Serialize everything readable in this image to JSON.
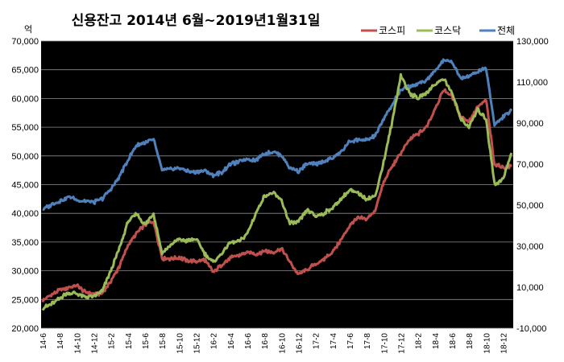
{
  "chart_data": {
    "type": "line",
    "title": "신용잔고 2014년 6월~2019년1월31일",
    "ylabel_left_unit": "억",
    "ylim_left": [
      20000,
      70000
    ],
    "ylim_right": [
      -10000,
      130000
    ],
    "yticks_left": [
      20000,
      25000,
      30000,
      35000,
      40000,
      45000,
      50000,
      55000,
      60000,
      65000,
      70000
    ],
    "yticks_right": [
      -10000,
      10000,
      30000,
      50000,
      70000,
      90000,
      110000,
      130000
    ],
    "yticks_left_labels": [
      "20,000",
      "25,000",
      "30,000",
      "35,000",
      "40,000",
      "45,000",
      "50,000",
      "55,000",
      "60,000",
      "65,000",
      "70,000"
    ],
    "yticks_right_labels": [
      "-10,000",
      "10,000",
      "30,000",
      "50,000",
      "70,000",
      "90,000",
      "110,000",
      "130,000"
    ],
    "x": [
      "14-6",
      "14-7",
      "14-8",
      "14-9",
      "14-10",
      "14-11",
      "14-12",
      "15-1",
      "15-2",
      "15-3",
      "15-4",
      "15-5",
      "15-6",
      "15-7",
      "15-8",
      "15-9",
      "15-10",
      "15-11",
      "15-12",
      "16-1",
      "16-2",
      "16-3",
      "16-4",
      "16-5",
      "16-6",
      "16-7",
      "16-8",
      "16-9",
      "16-10",
      "16-11",
      "16-12",
      "17-1",
      "17-2",
      "17-3",
      "17-4",
      "17-5",
      "17-6",
      "17-7",
      "17-8",
      "17-9",
      "17-10",
      "17-11",
      "17-12",
      "18-1",
      "18-2",
      "18-3",
      "18-4",
      "18-5",
      "18-6",
      "18-7",
      "18-8",
      "18-9",
      "18-10",
      "18-11",
      "18-12",
      "19-1"
    ],
    "x_tick_labels": [
      "14-6",
      "14-8",
      "14-10",
      "14-12",
      "15-2",
      "15-4",
      "15-6",
      "15-8",
      "15-10",
      "15-12",
      "16-2",
      "16-4",
      "16-6",
      "16-8",
      "16-10",
      "16-12",
      "17-2",
      "17-4",
      "17-6",
      "17-8",
      "17-10",
      "17-12",
      "18-2",
      "18-4",
      "18-6",
      "18-8",
      "18-10",
      "18-12"
    ],
    "legend_position": "top-right",
    "grid": true,
    "series": [
      {
        "name": "코스피",
        "color": "#c0504d",
        "axis": "left",
        "values": [
          24800,
          25800,
          26600,
          27100,
          27400,
          26300,
          25900,
          26100,
          28200,
          30800,
          34500,
          36500,
          38000,
          38600,
          32200,
          32100,
          32300,
          31800,
          31600,
          31900,
          29800,
          31000,
          32200,
          32700,
          33200,
          32900,
          33500,
          33200,
          33800,
          31500,
          29300,
          30200,
          31200,
          32000,
          33300,
          35400,
          37900,
          39200,
          39000,
          40500,
          45500,
          48200,
          50500,
          52800,
          53800,
          55000,
          58200,
          61500,
          60500,
          57000,
          56000,
          58500,
          59800,
          48500,
          48000,
          48200
        ]
      },
      {
        "name": "코스닥",
        "color": "#9bbb59",
        "axis": "left",
        "values": [
          23500,
          24200,
          25200,
          26200,
          26000,
          25500,
          25500,
          26500,
          30000,
          34000,
          38500,
          40000,
          38000,
          40000,
          33000,
          34500,
          35500,
          35200,
          35500,
          33000,
          31500,
          33000,
          35000,
          35000,
          36500,
          40000,
          43000,
          43500,
          42200,
          38200,
          38500,
          40500,
          39500,
          40000,
          41000,
          42500,
          44000,
          43500,
          42500,
          43000,
          49000,
          56000,
          64000,
          61000,
          60000,
          61000,
          62500,
          63500,
          61000,
          56500,
          55000,
          58000,
          56500,
          45000,
          46000,
          50500
        ]
      },
      {
        "name": "전체",
        "color": "#4f81bd",
        "axis": "right",
        "values": [
          48000,
          50000,
          52000,
          54000,
          52500,
          52000,
          51500,
          53000,
          58000,
          64000,
          72000,
          79000,
          80500,
          82000,
          67000,
          67500,
          68000,
          66500,
          66000,
          67000,
          64500,
          66000,
          70000,
          71000,
          72500,
          72000,
          75000,
          76000,
          74500,
          68000,
          66500,
          70000,
          70000,
          71500,
          73000,
          76000,
          81000,
          82000,
          81500,
          84000,
          92000,
          99000,
          106000,
          108000,
          109000,
          111000,
          115000,
          121000,
          120000,
          112000,
          113000,
          115000,
          117000,
          89000,
          93000,
          96000
        ]
      }
    ]
  }
}
